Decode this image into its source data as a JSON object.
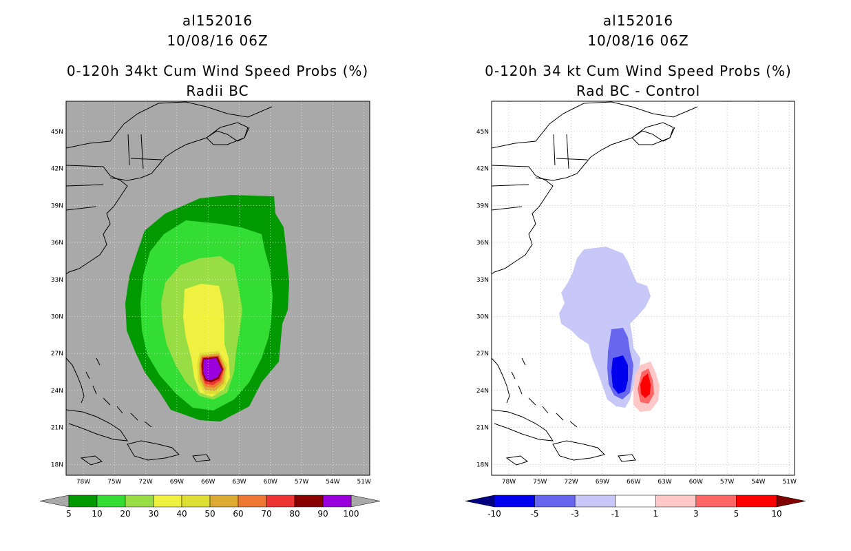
{
  "panels": [
    {
      "storm_id": "al152016",
      "datetime": "10/08/16 06Z",
      "title": "0-120h 34kt Cum Wind Speed Probs (%)",
      "subtitle": "Radii BC",
      "background": "#a9a9a9",
      "lat_ticks": [
        "45N",
        "42N",
        "39N",
        "36N",
        "33N",
        "30N",
        "27N",
        "24N",
        "21N",
        "18N"
      ],
      "lon_ticks": [
        "78W",
        "75W",
        "72W",
        "69W",
        "66W",
        "63W",
        "60W",
        "57W",
        "54W",
        "51W"
      ],
      "colorbar": {
        "colors": [
          "#009900",
          "#33dd33",
          "#99dd44",
          "#f0f040",
          "#dddd33",
          "#ddaa33",
          "#ee7733",
          "#ee3333",
          "#880000",
          "#9900dd"
        ],
        "end_colors": [
          "#a9a9a9",
          "#a9a9a9"
        ],
        "labels": [
          "5",
          "10",
          "20",
          "30",
          "40",
          "50",
          "60",
          "70",
          "80",
          "90",
          "100"
        ]
      }
    },
    {
      "storm_id": "al152016",
      "datetime": "10/08/16 06Z",
      "title": "0-120h 34 kt Cum Wind Speed Probs (%)",
      "subtitle": "Rad BC - Control",
      "background": "#ffffff",
      "lat_ticks": [
        "45N",
        "42N",
        "39N",
        "36N",
        "33N",
        "30N",
        "27N",
        "24N",
        "21N",
        "18N"
      ],
      "lon_ticks": [
        "78W",
        "75W",
        "72W",
        "69W",
        "66W",
        "63W",
        "60W",
        "57W",
        "54W",
        "51W"
      ],
      "colorbar": {
        "colors": [
          "#0000ee",
          "#6666ee",
          "#c8c8f8",
          "#ffffff",
          "#ffc8c8",
          "#ff6666",
          "#ff0000"
        ],
        "end_colors": [
          "#000080",
          "#800000"
        ],
        "labels": [
          "-10",
          "-5",
          "-3",
          "-1",
          "1",
          "3",
          "5",
          "10"
        ]
      }
    }
  ]
}
